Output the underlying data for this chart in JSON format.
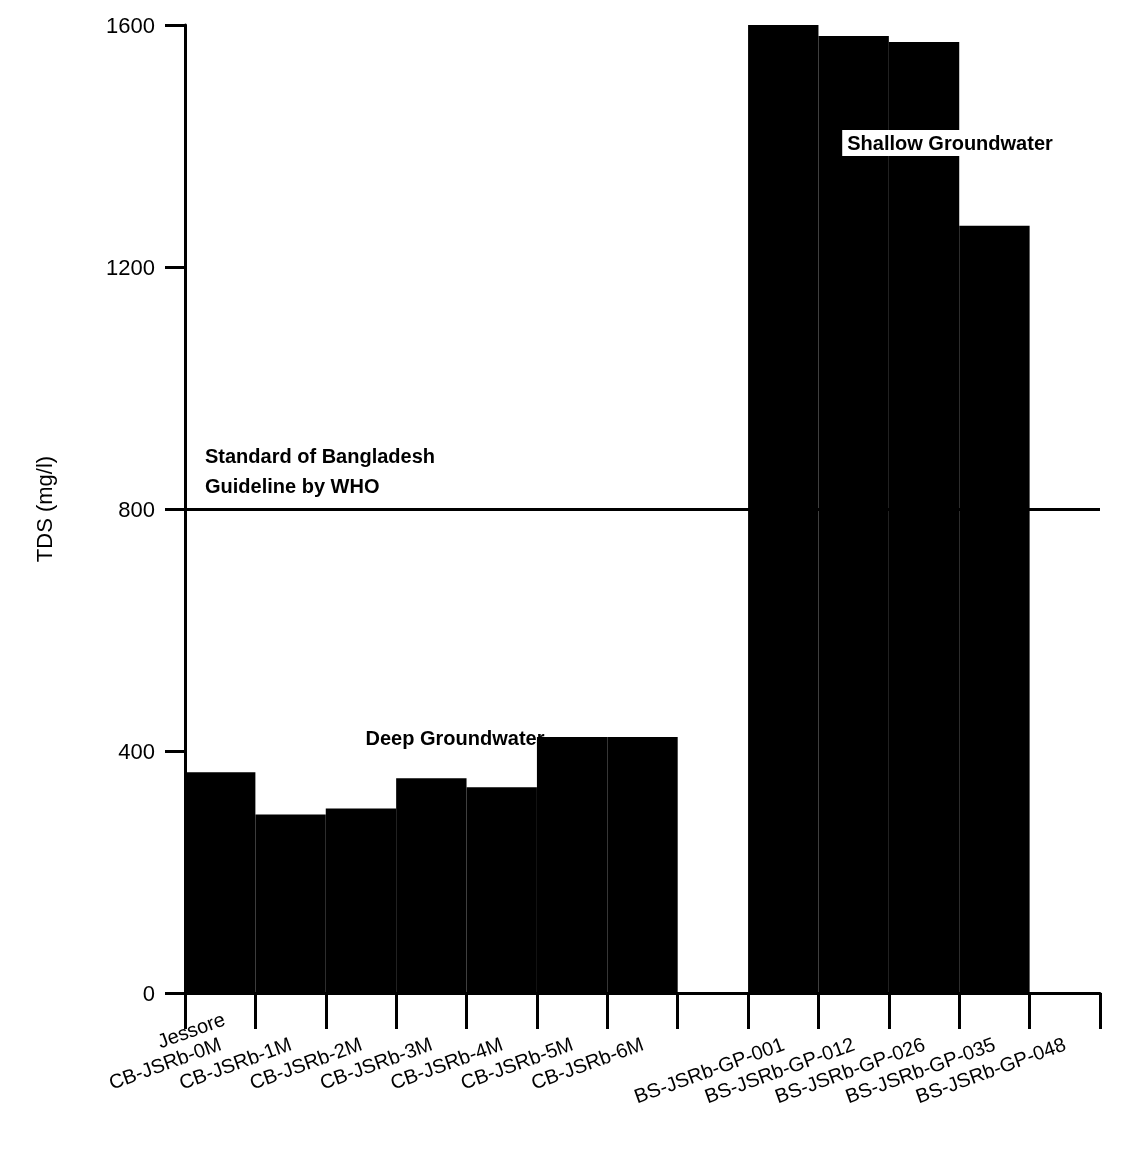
{
  "chart_data": {
    "type": "bar",
    "ylabel": "TDS (mg/l)",
    "categories": [
      "CB-JSRb-0M",
      "CB-JSRb-1M",
      "CB-JSRb-2M",
      "CB-JSRb-3M",
      "CB-JSRb-4M",
      "CB-JSRb-5M",
      "CB-JSRb-6M",
      null,
      "BS-JSRb-GP-001",
      "BS-JSRb-GP-012",
      "BS-JSRb-GP-026",
      "BS-JSRb-GP-035",
      "BS-JSRb-GP-048"
    ],
    "values": [
      365,
      295,
      305,
      355,
      340,
      423,
      423,
      null,
      1600,
      1582,
      1572,
      1268,
      null
    ],
    "color": "#000000",
    "ylim": [
      0,
      1600
    ],
    "yticks": [
      0,
      400,
      800,
      1200,
      1600
    ],
    "ref_lines": [
      {
        "axis": "y",
        "value": 800,
        "label": "Standard of Bangladesh Guideline by WHO",
        "color": "#000000"
      }
    ],
    "annotations": [
      "Jessore",
      "Deep Groundwater",
      "Shallow Groundwater"
    ],
    "grid": false
  }
}
